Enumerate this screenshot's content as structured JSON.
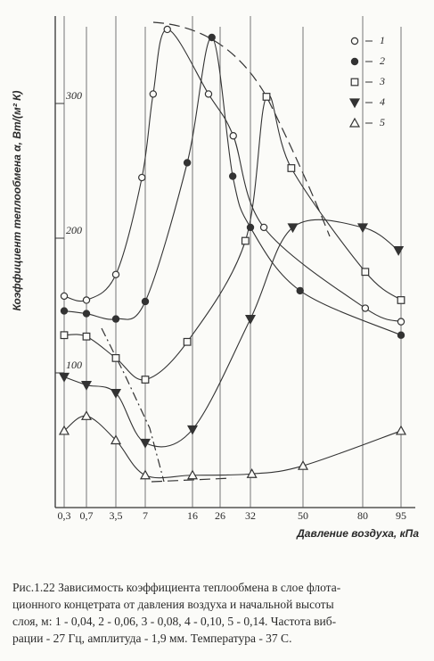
{
  "chart_data": {
    "type": "line",
    "y_label": "Коэффициент теплообмена  α, Вт/(м² К)",
    "x_label": "Давление воздуха,  кПа",
    "xticks": [
      {
        "value": 0.3,
        "label": "0,3"
      },
      {
        "value": 0.7,
        "label": "0,7"
      },
      {
        "value": 3.5,
        "label": "3,5"
      },
      7,
      16,
      26,
      32,
      50,
      80,
      95
    ],
    "ylim": [
      0,
      360
    ],
    "yticks": [
      100,
      200,
      300
    ],
    "grid": "x",
    "series": [
      {
        "name": "1",
        "marker": "circle-open",
        "color": "#333333",
        "x": [
          0.3,
          0.7,
          3.5,
          6.6,
          8.5,
          11.2,
          21.8,
          28.6,
          36.6,
          81,
          95
        ],
        "values": [
          157,
          154,
          173,
          245,
          307,
          355,
          307,
          276,
          208,
          148,
          138
        ]
      },
      {
        "name": "2",
        "marker": "circle-filled",
        "color": "#333333",
        "x": [
          0.3,
          0.7,
          3.5,
          7,
          15,
          23,
          28.5,
          32,
          49,
          95
        ],
        "values": [
          146,
          144,
          140,
          153,
          256,
          349,
          246,
          208,
          161,
          128
        ]
      },
      {
        "name": "3",
        "marker": "square-open",
        "color": "#333333",
        "x": [
          0.3,
          0.7,
          3.5,
          7,
          15,
          31,
          37.5,
          46,
          81,
          95
        ],
        "values": [
          128,
          127,
          111,
          95,
          123,
          198,
          305,
          252,
          175,
          154
        ]
      },
      {
        "name": "4",
        "marker": "triangle-down-filled",
        "color": "#333333",
        "x": [
          0.3,
          0.7,
          3.5,
          7,
          16,
          32,
          46.5,
          80,
          94
        ],
        "values": [
          97,
          91,
          85,
          48,
          58,
          140,
          208,
          208,
          191
        ]
      },
      {
        "name": "5",
        "marker": "triangle-up-open",
        "color": "#333333",
        "x": [
          0.3,
          0.7,
          3.5,
          7,
          16,
          32.5,
          50,
          95
        ],
        "values": [
          57,
          68,
          50,
          24,
          24,
          25,
          31,
          57
        ]
      }
    ],
    "caption": [
      "Рис.1.22 Зависимость  коэффициента теплообмена  в слое  флота-",
      "ционного концетрата от давления воздуха и начальной  высоты",
      "слоя, м: 1 - 0,04,  2 - 0,06,  3 - 0,08,  4 - 0,10, 5 - 0,14.  Частота виб-",
      "рации - 27 Гц, амплитуда - 1,9 мм.  Температура - 37 С."
    ]
  }
}
